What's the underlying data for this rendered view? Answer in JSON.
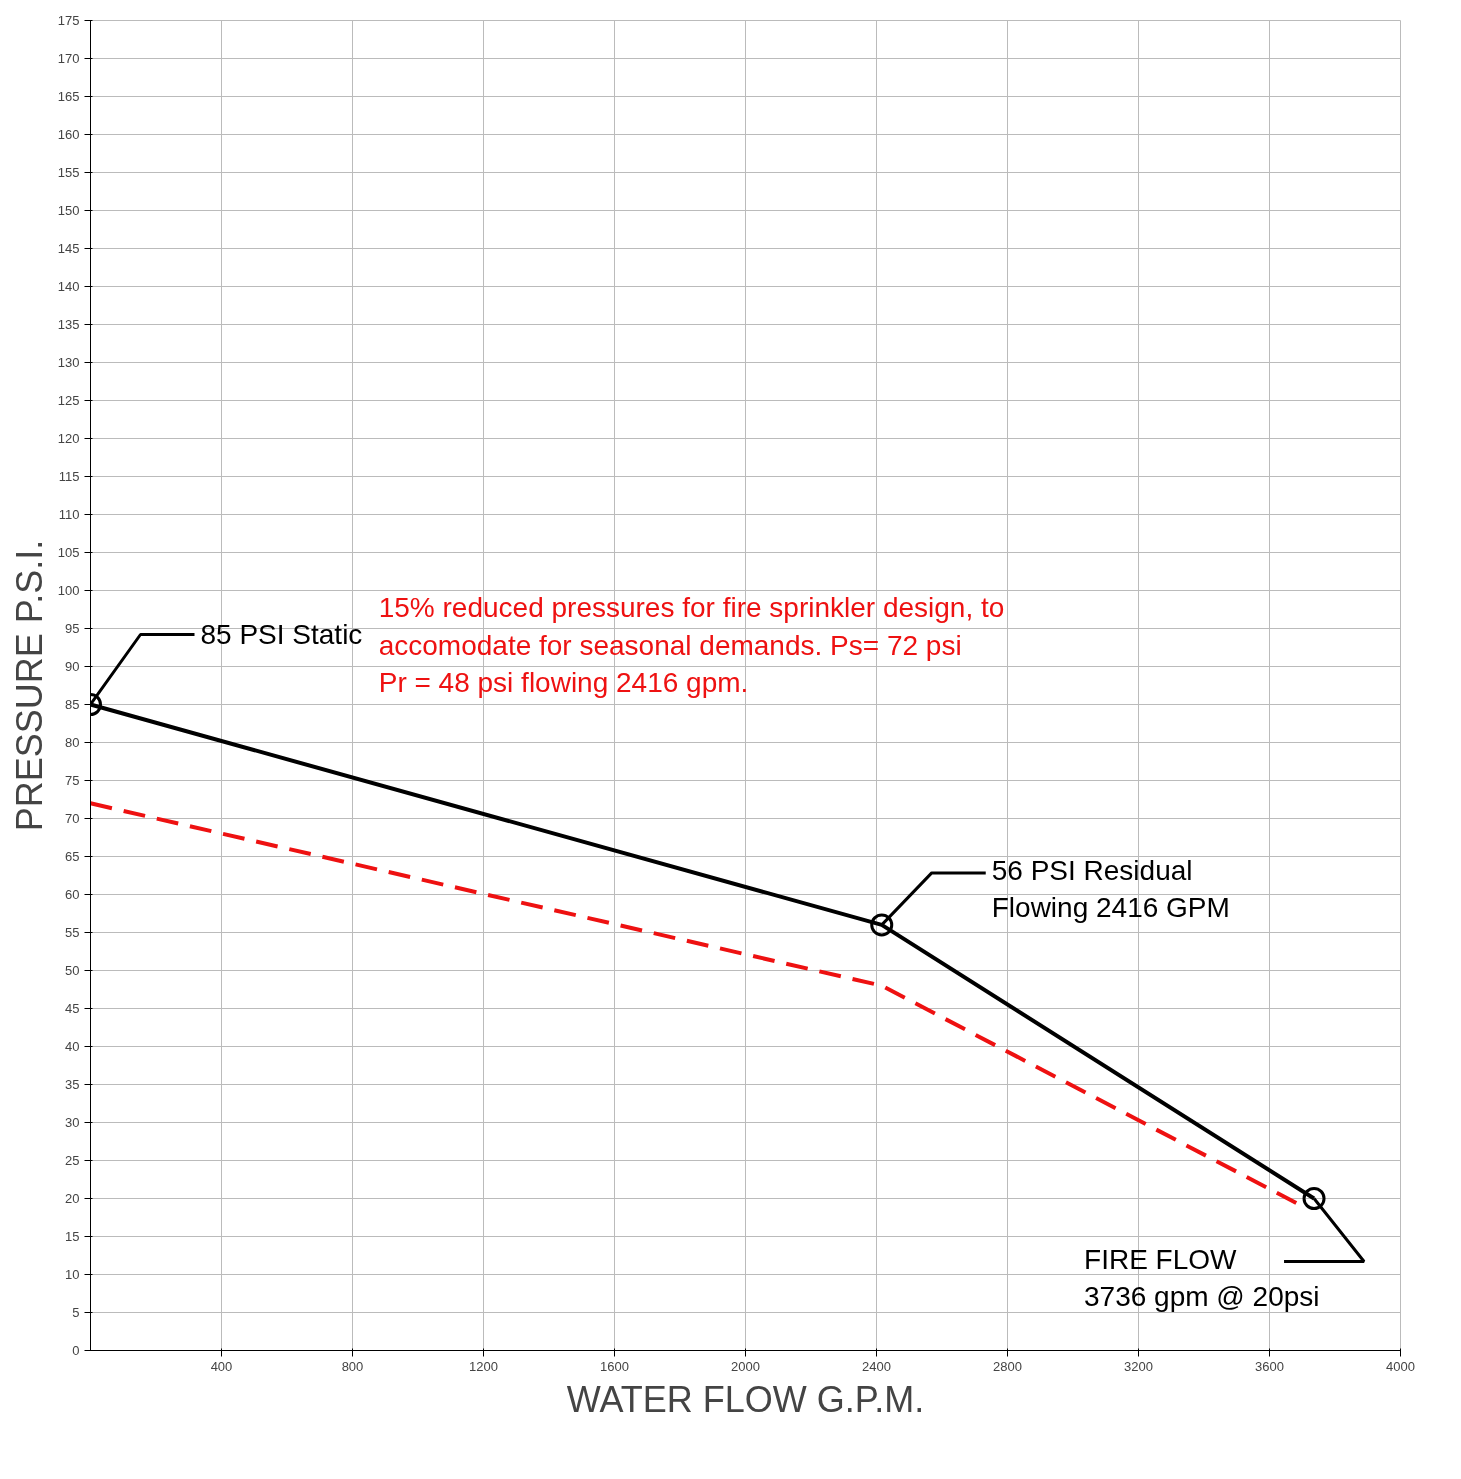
{
  "chart_data": {
    "type": "line",
    "xlabel": "WATER FLOW G.P.M.",
    "ylabel": "PRESSURE P.S.I.",
    "xlim": [
      0,
      4000
    ],
    "xticks": [
      400,
      800,
      1200,
      1600,
      2000,
      2400,
      2800,
      3200,
      3600,
      4000
    ],
    "ylim": [
      0,
      175
    ],
    "yticks": [
      0,
      5,
      10,
      15,
      20,
      25,
      30,
      35,
      40,
      45,
      50,
      55,
      60,
      65,
      70,
      75,
      80,
      85,
      90,
      95,
      100,
      105,
      110,
      115,
      120,
      125,
      130,
      135,
      140,
      145,
      150,
      155,
      160,
      165,
      170,
      175
    ],
    "grid": true,
    "series": [
      {
        "color": "#000000",
        "x": [
          0,
          2416,
          3736
        ],
        "values": [
          85,
          56,
          20
        ],
        "marker": "circle",
        "line_style": "solid"
      },
      {
        "color": "#ee1111",
        "x": [
          0,
          2416,
          3700
        ],
        "values": [
          72,
          48,
          19
        ],
        "marker": "none",
        "line_style": "dashed"
      }
    ],
    "annotations": [
      {
        "text": "85 PSI Static",
        "x": 0,
        "y": 85
      },
      {
        "text": "56 PSI Residual\nFlowing 2416 GPM",
        "x": 2416,
        "y": 56
      },
      {
        "text": "FIRE FLOW\n3736 gpm @ 20psi",
        "x": 3736,
        "y": 20
      },
      "15% reduced pressures for fire sprinkler design, to\naccomodate for seasonal demands.     Ps= 72 psi\nPr = 48 psi flowing 2416 gpm."
    ]
  }
}
